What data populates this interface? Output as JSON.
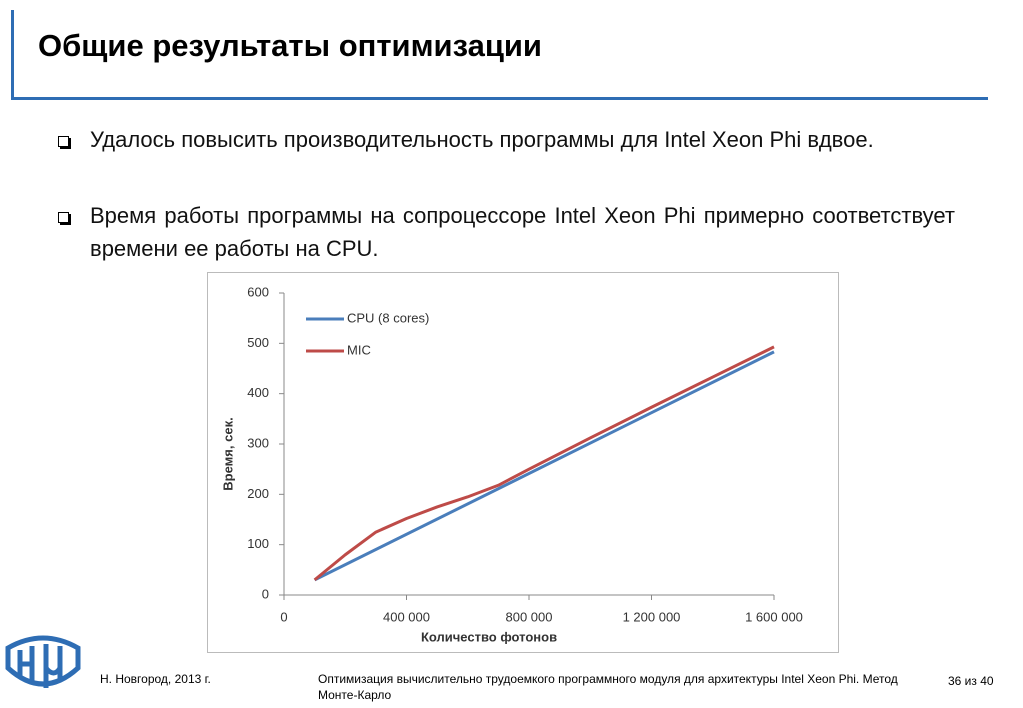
{
  "header": {
    "title": "Общие результаты оптимизации"
  },
  "bullets": [
    "Удалось повысить производительность программы для Intel Xeon Phi вдвое.",
    "Время работы программы на сопроцессоре Intel Xeon Phi примерно соответствует времени ее работы на CPU."
  ],
  "chart_data": {
    "type": "line",
    "xlabel": "Количество фотонов",
    "ylabel": "Время, сек.",
    "xlim": [
      0,
      1600000
    ],
    "xticks": [
      0,
      {
        "value": 400000,
        "label": "400 000"
      },
      {
        "value": 800000,
        "label": "800 000"
      },
      {
        "value": 1200000,
        "label": "1 200 000"
      },
      {
        "value": 1600000,
        "label": "1 600 000"
      }
    ],
    "ylim": [
      0,
      600
    ],
    "yticks": [
      0,
      100,
      200,
      300,
      400,
      500,
      600
    ],
    "grid": false,
    "legend": "top-left",
    "series": [
      {
        "name": "CPU (8 cores)",
        "color": "#4a7ebb",
        "x": [
          100000,
          1600000
        ],
        "values": [
          30,
          483
        ]
      },
      {
        "name": "MIC",
        "color": "#be4b48",
        "x": [
          100000,
          200000,
          300000,
          400000,
          500000,
          600000,
          700000,
          800000,
          1000000,
          1200000,
          1400000,
          1600000
        ],
        "values": [
          30,
          80,
          125,
          152,
          175,
          195,
          218,
          250,
          312,
          373,
          433,
          493
        ]
      }
    ]
  },
  "footer": {
    "left": "Н. Новгород, 2013 г.",
    "center": "Оптимизация вычислительно трудоемкого программного модуля для архитектуры Intel Xeon Phi. Метод Монте-Карло",
    "right": "36 из 40"
  }
}
